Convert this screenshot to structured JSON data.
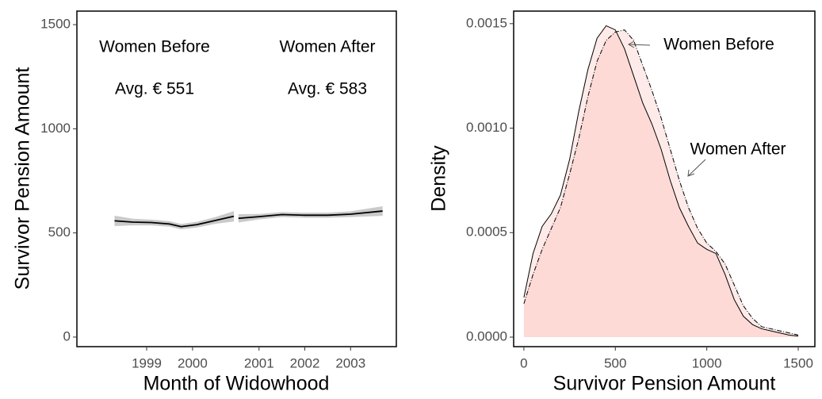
{
  "chart_data": [
    {
      "type": "line",
      "y_label": "Survivor Pension Amount",
      "x_label": "Month of Widowhood",
      "xlim": [
        1997.48,
        2000.96
      ],
      "ylim": [
        -46,
        1565
      ],
      "xticks": [
        1999,
        2000
      ],
      "yticks": [
        0,
        500,
        1000,
        1500
      ],
      "annotations": [
        "Women Before",
        "Avg. € 551"
      ],
      "band_color": "#bdbdbd",
      "series": [
        {
          "color": "#000000",
          "x": [
            1998.3,
            1998.7,
            1999.1,
            1999.5,
            1999.75,
            2000.1,
            2000.5,
            2000.9
          ],
          "values": [
            558,
            552,
            550,
            543,
            530,
            540,
            560,
            580
          ],
          "upper": [
            583,
            568,
            564,
            556,
            543,
            554,
            576,
            605
          ],
          "lower": [
            533,
            536,
            536,
            530,
            517,
            526,
            544,
            555
          ]
        }
      ]
    },
    {
      "type": "line",
      "xlim": [
        2000.51,
        2004.0
      ],
      "ylim": [
        -46,
        1565
      ],
      "xticks": [
        2001,
        2002,
        2003
      ],
      "annotations": [
        "Women After",
        "Avg. € 583"
      ],
      "band_color": "#bdbdbd",
      "series": [
        {
          "color": "#000000",
          "x": [
            2000.55,
            2001,
            2001.5,
            2002,
            2002.5,
            2003,
            2003.7
          ],
          "values": [
            570,
            578,
            588,
            585,
            585,
            590,
            605
          ],
          "upper": [
            590,
            591,
            600,
            597,
            597,
            604,
            628
          ],
          "lower": [
            550,
            565,
            576,
            573,
            573,
            576,
            582
          ]
        }
      ]
    },
    {
      "type": "density",
      "x_label": "Survivor Pension Amount",
      "y_label": "Density",
      "xlim": [
        -56,
        1591
      ],
      "ylim": [
        -4.56e-05,
        0.00156
      ],
      "xticks": [
        0,
        500,
        1000,
        1500
      ],
      "yticks": [
        {
          "value": 0,
          "label": "0.0000"
        },
        {
          "value": 0.0005,
          "label": "0.0005"
        },
        {
          "value": 0.001,
          "label": "0.0010"
        },
        {
          "value": 0.0015,
          "label": "0.0015"
        }
      ],
      "fill": "#f8766d",
      "x": [
        0,
        50,
        100,
        150,
        200,
        250,
        300,
        350,
        400,
        450,
        500,
        550,
        600,
        650,
        700,
        750,
        800,
        850,
        900,
        950,
        1000,
        1050,
        1100,
        1150,
        1200,
        1250,
        1300,
        1350,
        1400,
        1450,
        1500
      ],
      "series": [
        {
          "name": "Women Before",
          "color": "#000000",
          "line_style": "solid",
          "values": [
            0.00019,
            0.0004,
            0.00053,
            0.00059,
            0.00068,
            0.00085,
            0.00108,
            0.00128,
            0.00143,
            0.00149,
            0.00147,
            0.00138,
            0.00125,
            0.00112,
            0.00102,
            0.0009,
            0.00075,
            0.00062,
            0.00053,
            0.00045,
            0.00042,
            0.0004,
            0.0003,
            0.00018,
            0.0001,
            6e-05,
            4e-05,
            3e-05,
            2e-05,
            1e-05,
            5e-06
          ]
        },
        {
          "name": "Women After",
          "color": "#000000",
          "line_style": "dashdot",
          "values": [
            0.00016,
            0.0003,
            0.00042,
            0.00052,
            0.00062,
            0.00078,
            0.00095,
            0.00115,
            0.00132,
            0.00142,
            0.00146,
            0.00147,
            0.00142,
            0.0013,
            0.00118,
            0.00105,
            0.0009,
            0.00075,
            0.00062,
            0.00052,
            0.00045,
            0.00041,
            0.00035,
            0.00025,
            0.00015,
            9e-05,
            5e-05,
            4e-05,
            3e-05,
            2e-05,
            1e-05
          ]
        }
      ]
    }
  ]
}
